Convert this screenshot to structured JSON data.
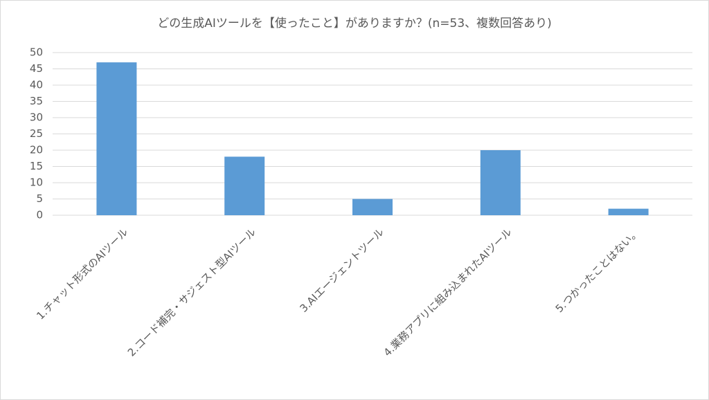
{
  "chart_data": {
    "type": "bar",
    "title": "どの生成AIツールを【使ったこと】がありますか？(n=53、複数回答あり)",
    "categories": [
      "1.チャット形式のAIツール",
      "2.コード補完・サジェスト型AIツール",
      "3.AIエージェントツール",
      "4.業務アプリに組み込まれたAIツール",
      "5.つかったことはない。"
    ],
    "values": [
      47,
      18,
      5,
      20,
      2
    ],
    "color": "#5b9bd5",
    "ylim": [
      0,
      50
    ],
    "yticks": [
      0,
      5,
      10,
      15,
      20,
      25,
      30,
      35,
      40,
      45,
      50
    ],
    "grid": true
  }
}
